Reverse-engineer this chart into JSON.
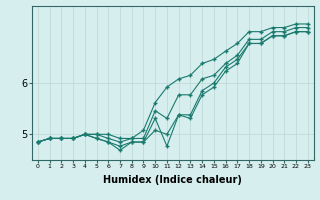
{
  "xlabel": "Humidex (Indice chaleur)",
  "background_color": "#d6eeee",
  "line_color": "#1a7a6e",
  "grid_color": "#c0dada",
  "x_values": [
    0,
    1,
    2,
    3,
    4,
    5,
    6,
    7,
    8,
    9,
    10,
    11,
    12,
    13,
    14,
    15,
    16,
    17,
    18,
    19,
    20,
    21,
    22,
    23
  ],
  "series1": [
    4.85,
    4.92,
    4.92,
    4.92,
    5.0,
    5.0,
    5.0,
    4.92,
    4.92,
    5.08,
    5.62,
    5.92,
    6.08,
    6.15,
    6.38,
    6.46,
    6.62,
    6.77,
    7.0,
    7.0,
    7.08,
    7.08,
    7.15,
    7.15
  ],
  "series2": [
    4.85,
    4.92,
    4.92,
    4.92,
    5.0,
    5.0,
    4.92,
    4.85,
    4.92,
    4.92,
    5.46,
    5.31,
    5.77,
    5.77,
    6.08,
    6.15,
    6.38,
    6.54,
    6.85,
    6.85,
    7.0,
    7.0,
    7.08,
    7.08
  ],
  "series3": [
    4.85,
    4.92,
    4.92,
    4.92,
    5.0,
    4.92,
    4.85,
    4.69,
    4.85,
    4.85,
    5.31,
    4.77,
    5.38,
    5.31,
    5.77,
    5.92,
    6.23,
    6.38,
    6.77,
    6.77,
    6.92,
    6.92,
    7.0,
    7.0
  ],
  "series4": [
    4.85,
    4.92,
    4.92,
    4.92,
    5.0,
    4.92,
    4.85,
    4.77,
    4.85,
    4.85,
    5.08,
    5.0,
    5.38,
    5.38,
    5.85,
    6.0,
    6.31,
    6.46,
    6.77,
    6.77,
    6.92,
    6.92,
    7.0,
    7.0
  ],
  "yticks": [
    5,
    6
  ],
  "ylim": [
    4.5,
    7.5
  ],
  "xlim": [
    -0.5,
    23.5
  ]
}
